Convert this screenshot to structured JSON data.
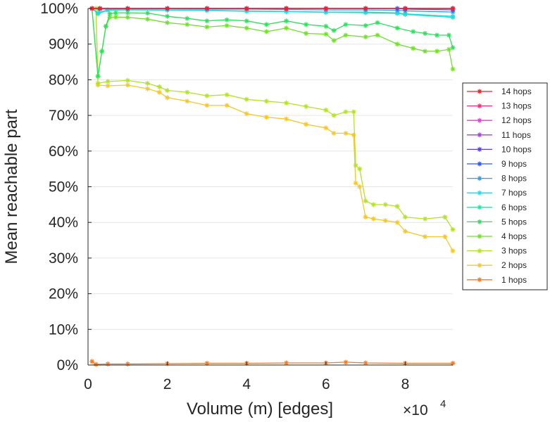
{
  "chart_data": {
    "type": "line",
    "title": "",
    "xlabel": "Volume (m) [edges]",
    "ylabel": "Mean reachable part",
    "x_multiplier_label": "×10",
    "x_multiplier_exponent": "4",
    "xlim": [
      0,
      92000
    ],
    "ylim": [
      0,
      100
    ],
    "x_ticks": [
      0,
      20000,
      40000,
      60000,
      80000
    ],
    "x_tick_labels": [
      "0",
      "2",
      "4",
      "6",
      "8"
    ],
    "y_ticks": [
      0,
      10,
      20,
      30,
      40,
      50,
      60,
      70,
      80,
      90,
      100
    ],
    "y_tick_labels": [
      "0%",
      "10%",
      "20%",
      "30%",
      "40%",
      "50%",
      "60%",
      "70%",
      "80%",
      "90%",
      "100%"
    ],
    "grid": true,
    "legend_position": "right",
    "marker": "asterisk",
    "series": [
      {
        "name": "14 hops",
        "color": "#e8232b",
        "x": [
          1000,
          3000,
          10000,
          20000,
          30000,
          40000,
          50000,
          60000,
          70000,
          80000,
          92000
        ],
        "y": [
          100,
          100,
          100,
          100,
          100,
          100,
          100,
          100,
          100,
          100,
          100
        ]
      },
      {
        "name": "13 hops",
        "color": "#ef2f7a",
        "x": [
          1000,
          3000,
          10000,
          20000,
          30000,
          40000,
          50000,
          60000,
          70000,
          80000,
          92000
        ],
        "y": [
          100,
          100,
          100,
          100,
          100,
          100,
          100,
          100,
          100,
          100,
          100
        ]
      },
      {
        "name": "12 hops",
        "color": "#e43ad8",
        "x": [
          1000,
          3000,
          10000,
          20000,
          30000,
          40000,
          50000,
          60000,
          70000,
          80000,
          92000
        ],
        "y": [
          100,
          100,
          100,
          100,
          100,
          100,
          100,
          100,
          100,
          100,
          100
        ]
      },
      {
        "name": "11 hops",
        "color": "#a73bea",
        "x": [
          1000,
          3000,
          10000,
          20000,
          30000,
          40000,
          50000,
          60000,
          70000,
          80000,
          92000
        ],
        "y": [
          100,
          100,
          100,
          100,
          100,
          100,
          100,
          100,
          100,
          100,
          100
        ]
      },
      {
        "name": "10 hops",
        "color": "#5a3de0",
        "x": [
          1000,
          3000,
          10000,
          20000,
          30000,
          40000,
          50000,
          60000,
          70000,
          80000,
          92000
        ],
        "y": [
          100,
          100,
          100,
          100,
          100,
          100,
          100,
          100,
          100,
          100,
          100
        ]
      },
      {
        "name": "9 hops",
        "color": "#2c56ef",
        "x": [
          1000,
          3000,
          10000,
          20000,
          30000,
          40000,
          50000,
          60000,
          70000,
          78000,
          80000,
          92000
        ],
        "y": [
          100,
          100,
          100,
          100,
          100,
          100,
          100,
          100,
          100,
          100,
          99.8,
          99.6
        ]
      },
      {
        "name": "8 hops",
        "color": "#2c9ee8",
        "x": [
          1000,
          3000,
          10000,
          20000,
          30000,
          40000,
          50000,
          60000,
          70000,
          78000,
          80000,
          92000
        ],
        "y": [
          100,
          99.8,
          99.9,
          99.9,
          99.8,
          99.8,
          99.7,
          99.6,
          99.6,
          99.5,
          99.3,
          99.0
        ]
      },
      {
        "name": "7 hops",
        "color": "#25d9e2",
        "x": [
          1000,
          2500,
          5000,
          10000,
          20000,
          30000,
          40000,
          50000,
          60000,
          70000,
          78000,
          80000,
          92000
        ],
        "y": [
          100,
          98.8,
          99.6,
          99.7,
          99.6,
          99.5,
          99.3,
          99.2,
          99.0,
          99.0,
          98.8,
          98.5,
          97.8
        ]
      },
      {
        "name": "6 hops",
        "color": "#28e0a4",
        "x": [
          1000,
          2500,
          5000,
          10000,
          20000,
          30000,
          40000,
          50000,
          60000,
          70000,
          78000,
          80000,
          92000
        ],
        "y": [
          100,
          98.5,
          99.5,
          99.6,
          99.5,
          99.4,
          99.2,
          99.1,
          98.9,
          98.8,
          98.6,
          98.3,
          97.5
        ]
      },
      {
        "name": "5 hops",
        "color": "#2ee05c",
        "x": [
          1000,
          2500,
          3500,
          4500,
          5500,
          7000,
          10000,
          15000,
          20000,
          25000,
          30000,
          35000,
          40000,
          45000,
          50000,
          55000,
          60000,
          62000,
          65000,
          70000,
          73000,
          78000,
          82000,
          85000,
          88000,
          91000,
          92000
        ],
        "y": [
          100,
          81,
          88,
          95,
          98.5,
          98.8,
          98.8,
          98.7,
          97.8,
          97.2,
          96.5,
          96.8,
          96.5,
          95.5,
          96.5,
          95.5,
          95,
          93.8,
          95.5,
          95.2,
          96,
          94.5,
          93.5,
          93,
          92.5,
          92.5,
          89
        ]
      },
      {
        "name": "4 hops",
        "color": "#72e02a",
        "x": [
          1000,
          2500,
          3500,
          4500,
          5500,
          7000,
          10000,
          15000,
          20000,
          25000,
          30000,
          35000,
          40000,
          45000,
          50000,
          55000,
          60000,
          62000,
          65000,
          70000,
          73000,
          78000,
          82000,
          85000,
          88000,
          91000,
          92000
        ],
        "y": [
          100,
          81,
          88,
          95,
          97.5,
          97.6,
          97.5,
          97.0,
          96.0,
          95.5,
          94.8,
          95.2,
          94.5,
          93.5,
          94.5,
          93.0,
          92.8,
          91.0,
          92.5,
          92.0,
          92.5,
          90.0,
          88.8,
          88.0,
          88.0,
          88.5,
          83
        ]
      },
      {
        "name": "3 hops",
        "color": "#b4e22a",
        "x": [
          1000,
          2000,
          2500,
          5000,
          10000,
          15000,
          18000,
          20000,
          25000,
          30000,
          35000,
          40000,
          45000,
          50000,
          55000,
          60000,
          62000,
          65000,
          67000,
          67500,
          68500,
          70000,
          72000,
          75000,
          78000,
          80000,
          85000,
          90000,
          92000
        ],
        "y": [
          100,
          100,
          79,
          79.5,
          79.8,
          79.0,
          78.0,
          77.0,
          76.5,
          75.5,
          75.8,
          74.5,
          74.0,
          73.5,
          72.5,
          71.5,
          70.0,
          71.0,
          71.0,
          56,
          55,
          46,
          45,
          45,
          44.5,
          41.5,
          41,
          41.5,
          38
        ]
      },
      {
        "name": "2 hops",
        "color": "#f5c72a",
        "x": [
          1000,
          2000,
          2500,
          5000,
          10000,
          15000,
          18000,
          20000,
          25000,
          30000,
          35000,
          40000,
          45000,
          50000,
          55000,
          60000,
          62000,
          65000,
          67000,
          67500,
          68500,
          70000,
          72000,
          75000,
          78000,
          80000,
          85000,
          90000,
          92000
        ],
        "y": [
          100,
          100,
          78.5,
          78.3,
          78.5,
          77.5,
          76.5,
          75.0,
          74.0,
          72.8,
          72.8,
          70.5,
          69.5,
          69.0,
          67.5,
          66.5,
          65.0,
          65.0,
          64.5,
          51,
          50,
          41.5,
          41,
          40.5,
          40,
          37.5,
          36,
          36,
          32
        ]
      },
      {
        "name": "1 hops",
        "color": "#f07a25",
        "x": [
          1000,
          2000,
          5000,
          10000,
          20000,
          30000,
          40000,
          50000,
          60000,
          65000,
          70000,
          80000,
          92000
        ],
        "y": [
          1.0,
          0.2,
          0.3,
          0.3,
          0.4,
          0.5,
          0.5,
          0.6,
          0.6,
          0.8,
          0.6,
          0.5,
          0.5
        ]
      }
    ]
  }
}
